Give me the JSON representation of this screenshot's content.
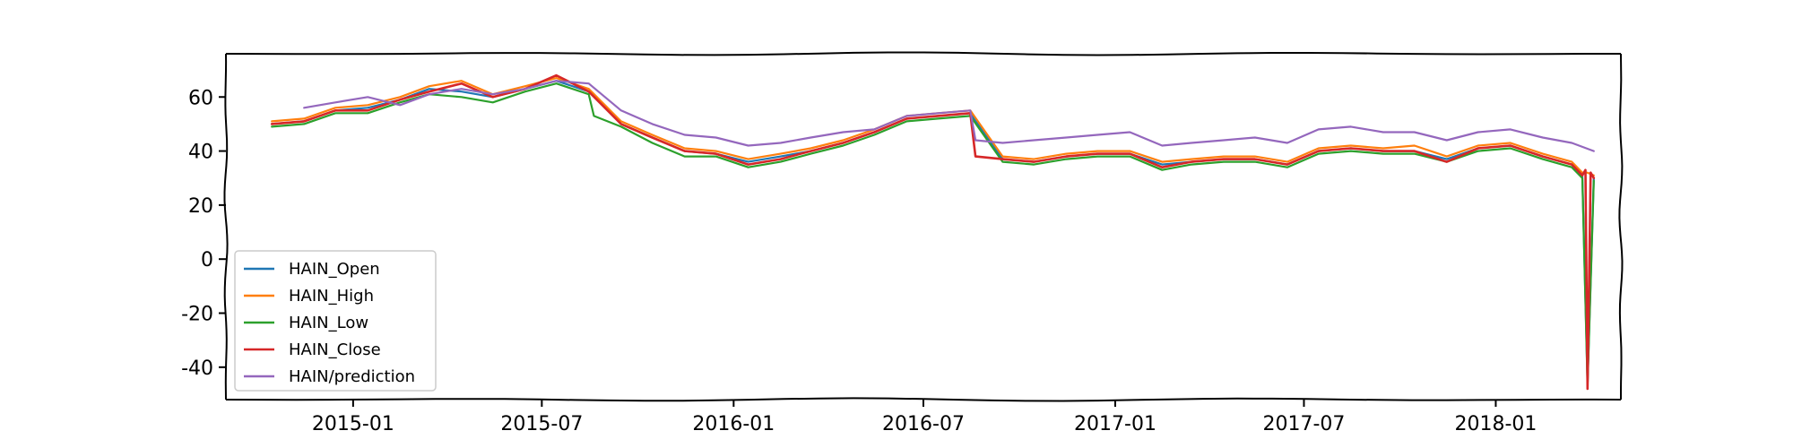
{
  "chart_data": {
    "type": "line",
    "title": "",
    "xlabel": "",
    "ylabel": "",
    "grid": false,
    "legend_position": "lower-left",
    "xlim": [
      "2014-09-01",
      "2018-05-01"
    ],
    "ylim": [
      -52,
      76
    ],
    "x_ticks": [
      "2015-01",
      "2015-07",
      "2016-01",
      "2016-07",
      "2017-01",
      "2017-07",
      "2018-01"
    ],
    "y_ticks": [
      60,
      40,
      20,
      0,
      -20,
      -40
    ],
    "y_tick_labels": [
      "60",
      "40",
      "20",
      "0",
      "-20",
      "-40"
    ],
    "series": [
      {
        "name": "HAIN_Open",
        "color": "#1f77b4",
        "x": [
          "2014-10-15",
          "2014-11-15",
          "2014-12-15",
          "2015-01-15",
          "2015-02-15",
          "2015-03-15",
          "2015-04-15",
          "2015-05-15",
          "2015-06-15",
          "2015-07-15",
          "2015-08-15",
          "2015-09-15",
          "2015-10-15",
          "2015-11-15",
          "2015-12-15",
          "2016-01-15",
          "2016-02-15",
          "2016-03-15",
          "2016-04-15",
          "2016-05-15",
          "2016-06-15",
          "2016-07-15",
          "2016-08-15",
          "2016-09-15",
          "2016-10-15",
          "2016-11-15",
          "2016-12-15",
          "2017-01-15",
          "2017-02-15",
          "2017-03-15",
          "2017-04-15",
          "2017-05-15",
          "2017-06-15",
          "2017-07-15",
          "2017-08-15",
          "2017-09-15",
          "2017-10-15",
          "2017-11-15",
          "2017-12-15",
          "2018-01-15",
          "2018-02-15",
          "2018-03-15",
          "2018-03-25",
          "2018-03-30",
          "2018-04-05"
        ],
        "values": [
          50,
          51,
          55,
          56,
          59,
          63,
          62,
          60,
          63,
          66,
          62,
          50,
          45,
          40,
          39,
          36,
          38,
          40,
          43,
          47,
          52,
          53,
          54,
          37,
          36,
          38,
          39,
          39,
          35,
          36,
          37,
          37,
          35,
          40,
          41,
          40,
          40,
          37,
          41,
          42,
          38,
          35,
          31,
          -46,
          30
        ]
      },
      {
        "name": "HAIN_High",
        "color": "#ff7f0e",
        "x": [
          "2014-10-15",
          "2014-11-15",
          "2014-12-15",
          "2015-01-15",
          "2015-02-15",
          "2015-03-15",
          "2015-04-15",
          "2015-05-15",
          "2015-06-15",
          "2015-07-15",
          "2015-08-15",
          "2015-09-15",
          "2015-10-15",
          "2015-11-15",
          "2015-12-15",
          "2016-01-15",
          "2016-02-15",
          "2016-03-15",
          "2016-04-15",
          "2016-05-15",
          "2016-06-15",
          "2016-07-15",
          "2016-08-15",
          "2016-09-15",
          "2016-10-15",
          "2016-11-15",
          "2016-12-15",
          "2017-01-15",
          "2017-02-15",
          "2017-03-15",
          "2017-04-15",
          "2017-05-15",
          "2017-06-15",
          "2017-07-15",
          "2017-08-15",
          "2017-09-15",
          "2017-10-15",
          "2017-11-15",
          "2017-12-15",
          "2018-01-15",
          "2018-02-15",
          "2018-03-15",
          "2018-03-25",
          "2018-03-30",
          "2018-04-05"
        ],
        "values": [
          51,
          52,
          56,
          57,
          60,
          64,
          66,
          61,
          64,
          67,
          63,
          51,
          46,
          41,
          40,
          37,
          39,
          41,
          44,
          48,
          53,
          54,
          55,
          38,
          37,
          39,
          40,
          40,
          36,
          37,
          38,
          38,
          36,
          41,
          42,
          41,
          42,
          38,
          42,
          43,
          39,
          36,
          32,
          32,
          31
        ]
      },
      {
        "name": "HAIN_Low",
        "color": "#2ca02c",
        "x": [
          "2014-10-15",
          "2014-11-15",
          "2014-12-15",
          "2015-01-15",
          "2015-02-15",
          "2015-03-15",
          "2015-04-15",
          "2015-05-15",
          "2015-06-15",
          "2015-07-15",
          "2015-08-15",
          "2015-08-20",
          "2015-09-15",
          "2015-10-15",
          "2015-11-15",
          "2015-12-15",
          "2016-01-15",
          "2016-02-15",
          "2016-03-15",
          "2016-04-15",
          "2016-05-15",
          "2016-06-15",
          "2016-07-15",
          "2016-08-15",
          "2016-09-15",
          "2016-10-15",
          "2016-11-15",
          "2016-12-15",
          "2017-01-15",
          "2017-02-15",
          "2017-03-15",
          "2017-04-15",
          "2017-05-15",
          "2017-06-15",
          "2017-07-15",
          "2017-08-15",
          "2017-09-15",
          "2017-10-15",
          "2017-11-15",
          "2017-12-15",
          "2018-01-15",
          "2018-02-15",
          "2018-03-15",
          "2018-03-25",
          "2018-03-30",
          "2018-04-05"
        ],
        "values": [
          49,
          50,
          54,
          54,
          58,
          61,
          60,
          58,
          62,
          65,
          61,
          53,
          49,
          43,
          38,
          38,
          34,
          36,
          39,
          42,
          46,
          51,
          52,
          53,
          36,
          35,
          37,
          38,
          38,
          33,
          35,
          36,
          36,
          34,
          39,
          40,
          39,
          39,
          36,
          40,
          41,
          37,
          34,
          30,
          -47,
          29
        ]
      },
      {
        "name": "HAIN_Close",
        "color": "#d62728",
        "x": [
          "2014-10-15",
          "2014-11-15",
          "2014-12-15",
          "2015-01-15",
          "2015-02-15",
          "2015-03-15",
          "2015-04-15",
          "2015-05-15",
          "2015-06-15",
          "2015-07-15",
          "2015-08-15",
          "2015-09-15",
          "2015-10-15",
          "2015-11-15",
          "2015-12-15",
          "2016-01-15",
          "2016-02-15",
          "2016-03-15",
          "2016-04-15",
          "2016-05-15",
          "2016-06-15",
          "2016-07-15",
          "2016-08-15",
          "2016-08-20",
          "2016-09-15",
          "2016-10-15",
          "2016-11-15",
          "2016-12-15",
          "2017-01-15",
          "2017-02-15",
          "2017-03-15",
          "2017-04-15",
          "2017-05-15",
          "2017-06-15",
          "2017-07-15",
          "2017-08-15",
          "2017-09-15",
          "2017-10-15",
          "2017-11-15",
          "2017-12-15",
          "2018-01-15",
          "2018-02-15",
          "2018-03-15",
          "2018-03-25",
          "2018-03-28",
          "2018-03-30",
          "2018-04-02",
          "2018-04-05"
        ],
        "values": [
          50,
          51,
          55,
          55,
          59,
          62,
          65,
          60,
          63,
          68,
          62,
          50,
          45,
          40,
          39,
          35,
          37,
          40,
          43,
          47,
          52,
          53,
          54,
          38,
          37,
          36,
          38,
          39,
          39,
          34,
          36,
          37,
          37,
          35,
          40,
          41,
          40,
          40,
          36,
          41,
          42,
          38,
          35,
          31,
          33,
          -48,
          32,
          30
        ]
      },
      {
        "name": "HAIN/prediction",
        "color": "#9467bd",
        "x": [
          "2014-11-15",
          "2014-12-15",
          "2015-01-15",
          "2015-02-15",
          "2015-03-15",
          "2015-04-15",
          "2015-05-15",
          "2015-06-15",
          "2015-07-15",
          "2015-08-15",
          "2015-09-15",
          "2015-10-15",
          "2015-11-15",
          "2015-12-15",
          "2016-01-15",
          "2016-02-15",
          "2016-03-15",
          "2016-04-15",
          "2016-05-15",
          "2016-06-15",
          "2016-07-15",
          "2016-08-15",
          "2016-08-20",
          "2016-09-15",
          "2016-10-15",
          "2016-11-15",
          "2016-12-15",
          "2017-01-15",
          "2017-02-15",
          "2017-03-15",
          "2017-04-15",
          "2017-05-15",
          "2017-06-15",
          "2017-07-15",
          "2017-08-15",
          "2017-09-15",
          "2017-10-15",
          "2017-11-15",
          "2017-12-15",
          "2018-01-15",
          "2018-02-15",
          "2018-03-15",
          "2018-04-05"
        ],
        "values": [
          56,
          58,
          60,
          57,
          61,
          63,
          61,
          63,
          66,
          65,
          55,
          50,
          46,
          45,
          42,
          43,
          45,
          47,
          48,
          53,
          54,
          55,
          44,
          43,
          44,
          45,
          46,
          47,
          42,
          43,
          44,
          45,
          43,
          48,
          49,
          47,
          47,
          44,
          47,
          48,
          45,
          43,
          40
        ]
      }
    ]
  }
}
